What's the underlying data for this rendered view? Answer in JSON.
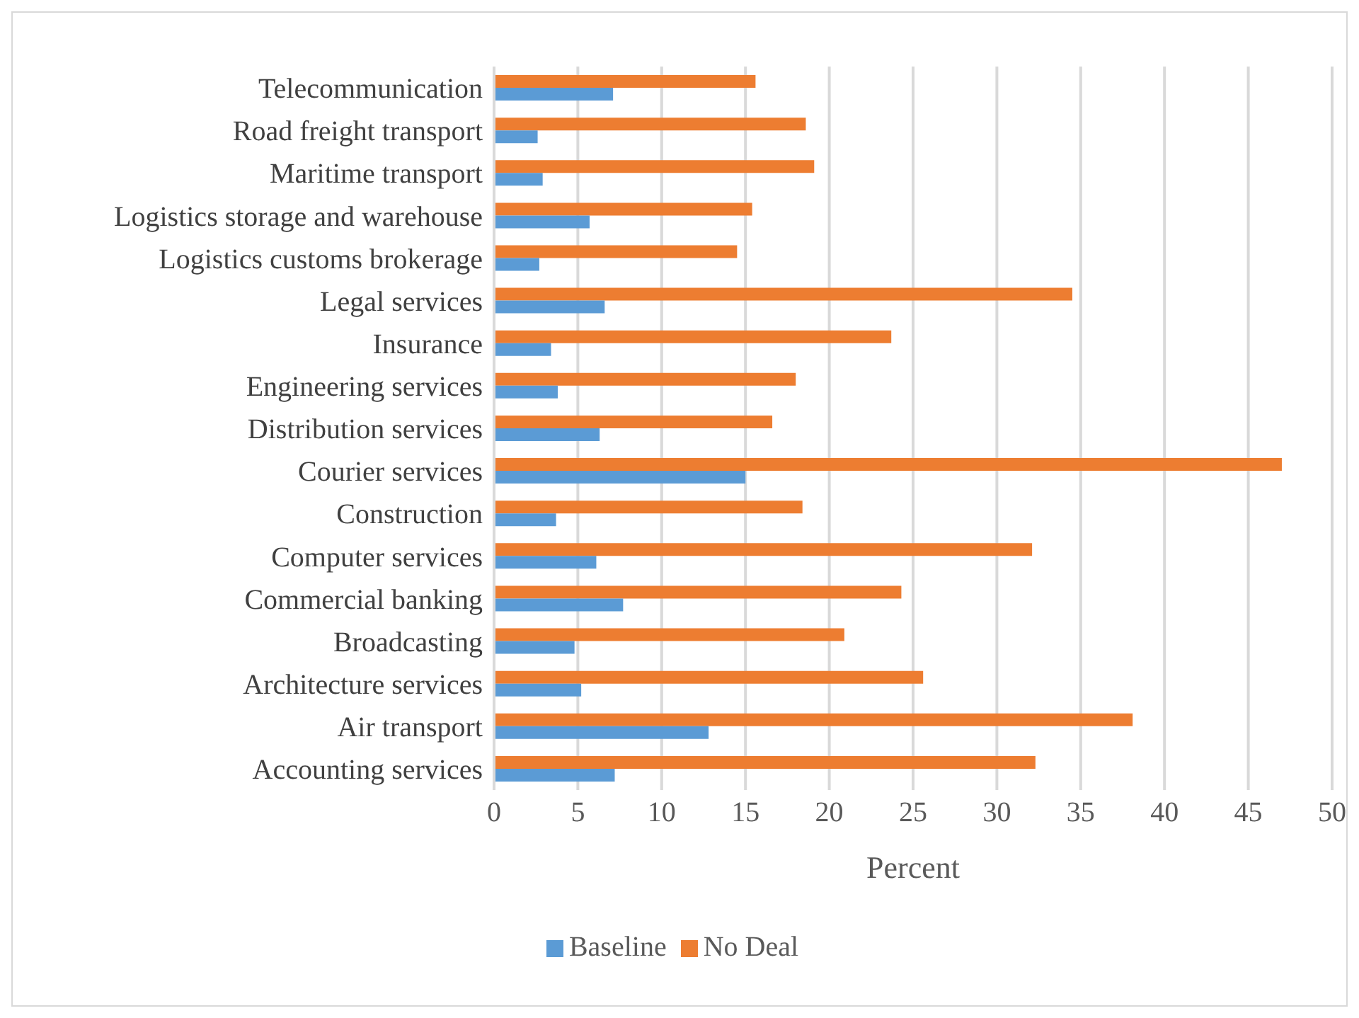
{
  "chart_data": {
    "type": "bar",
    "orientation": "horizontal",
    "xlabel": "Percent",
    "categories": [
      "Telecommunication",
      "Road freight transport",
      "Maritime transport",
      "Logistics storage and warehouse",
      "Logistics customs brokerage",
      "Legal services",
      "Insurance",
      "Engineering services",
      "Distribution services",
      "Courier services",
      "Construction",
      "Computer services",
      "Commercial banking",
      "Broadcasting",
      "Architecture services",
      "Air transport",
      "Accounting services"
    ],
    "series": [
      {
        "name": "No Deal",
        "color": "#ed7d31",
        "values": [
          15.6,
          18.6,
          19.1,
          15.4,
          14.5,
          34.5,
          23.7,
          18.0,
          16.6,
          47.0,
          18.4,
          32.1,
          24.3,
          20.9,
          25.6,
          38.1,
          32.3
        ]
      },
      {
        "name": "Baseline",
        "color": "#5b9bd5",
        "values": [
          7.1,
          2.6,
          2.9,
          5.7,
          2.7,
          6.6,
          3.4,
          3.8,
          6.3,
          15.0,
          3.7,
          6.1,
          7.7,
          4.8,
          5.2,
          12.8,
          7.2
        ]
      }
    ],
    "xlim": [
      0,
      50
    ],
    "xticks": [
      0,
      5,
      10,
      15,
      20,
      25,
      30,
      35,
      40,
      45,
      50
    ],
    "grid": "x",
    "legend": "bottom"
  }
}
